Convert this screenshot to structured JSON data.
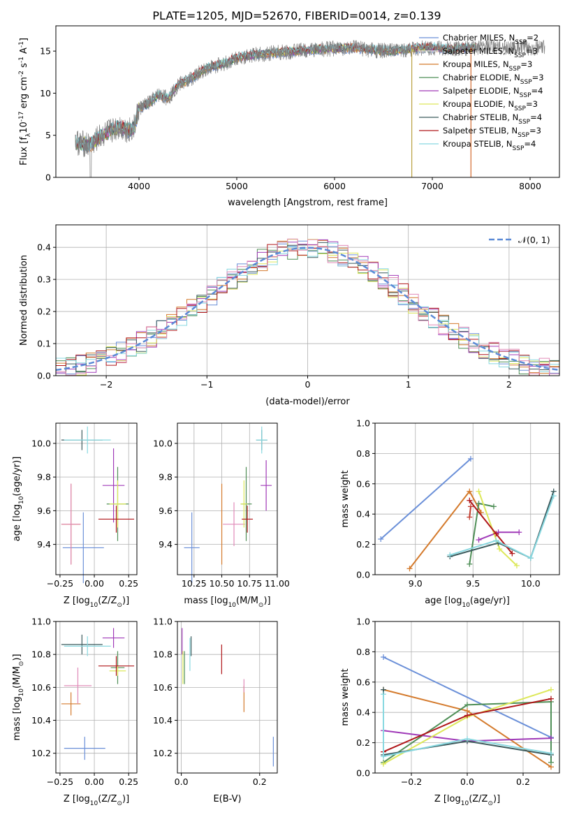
{
  "figure": {
    "title": "PLATE=1205, MJD=52670, FIBERID=0014, z=0.139"
  },
  "legend_entries": [
    {
      "label": "Chabrier MILES, N",
      "sub": "SSP",
      "tail": "=2",
      "color": "#6a8fd8"
    },
    {
      "label": "Salpeter MILES, N",
      "sub": "SSP",
      "tail": "=3",
      "color": "#e8e8e8"
    },
    {
      "label": "Kroupa MILES, N",
      "sub": "SSP",
      "tail": "=3",
      "color": "#d47a2c"
    },
    {
      "label": "Chabrier ELODIE, N",
      "sub": "SSP",
      "tail": "=3",
      "color": "#4f8f57"
    },
    {
      "label": "Salpeter ELODIE, N",
      "sub": "SSP",
      "tail": "=4",
      "color": "#a03ab8"
    },
    {
      "label": "Kroupa ELODIE, N",
      "sub": "SSP",
      "tail": "=3",
      "color": "#dde85a"
    },
    {
      "label": "Chabrier STELIB, N",
      "sub": "SSP",
      "tail": "=4",
      "color": "#3b5a5c"
    },
    {
      "label": "Salpeter STELIB, N",
      "sub": "SSP",
      "tail": "=3",
      "color": "#b0171a"
    },
    {
      "label": "Kroupa STELIB, N",
      "sub": "SSP",
      "tail": "=4",
      "color": "#88d8e0"
    }
  ],
  "chart_data": [
    {
      "id": "spectrum",
      "type": "line",
      "xlabel": "wavelength [Angstrom, rest frame]",
      "ylabel": "Flux [f",
      "ylabel_sub": "λ",
      "ylabel_mid": "10",
      "ylabel_sup": "-17",
      "ylabel_tail": " erg cm",
      "ylabel_sup2": "-2",
      "ylabel_tail2": " s",
      "ylabel_sup3": "-1",
      "ylabel_tail3": " A",
      "ylabel_sup4": "-1",
      "ylabel_end": "]",
      "xlim": [
        3150,
        8300
      ],
      "ylim": [
        0,
        18
      ],
      "xticks": [
        "4000",
        "5000",
        "6000",
        "7000",
        "8000"
      ],
      "xtick_values": [
        4000,
        5000,
        6000,
        7000,
        8000
      ],
      "yticks": [
        "0",
        "5",
        "10",
        "15"
      ],
      "ytick_values": [
        0,
        5,
        10,
        15
      ],
      "continuum_x": [
        3350,
        3500,
        3600,
        3700,
        3800,
        3900,
        3950,
        4000,
        4100,
        4200,
        4300,
        4400,
        4500,
        4700,
        4900,
        5000,
        5200,
        5400,
        5600,
        5800,
        6000,
        6200,
        6400,
        6600,
        6800,
        7000,
        7200,
        7400
      ],
      "continuum_y": [
        4.2,
        3.8,
        4.8,
        5.5,
        6.0,
        5.6,
        5.9,
        8.2,
        8.8,
        9.8,
        9.4,
        11.0,
        11.5,
        13.0,
        13.6,
        14.2,
        14.6,
        14.8,
        15.0,
        15.2,
        15.3,
        15.4,
        15.1,
        15.0,
        15.3,
        15.4,
        15.2,
        15.4
      ],
      "observed_color": "#808080"
    },
    {
      "id": "residuals",
      "type": "histogram",
      "xlabel": "(data-model)/error",
      "ylabel": "Normed distribution",
      "xlim": [
        -2.5,
        2.5
      ],
      "ylim": [
        0,
        0.47
      ],
      "xticks": [
        "−2",
        "−1",
        "0",
        "1",
        "2"
      ],
      "xtick_values": [
        -2,
        -1,
        0,
        1,
        2
      ],
      "yticks": [
        "0.0",
        "0.1",
        "0.2",
        "0.3",
        "0.4"
      ],
      "ytick_values": [
        0,
        0.1,
        0.2,
        0.3,
        0.4
      ],
      "grid": true,
      "legend_label": "𝒩(0, 1)",
      "normal_color": "#5b8ad6",
      "bin_width": 0.1
    },
    {
      "id": "age_vs_Z",
      "type": "errorbar",
      "xlabel": "Z [log",
      "xlabel_sub": "10",
      "xlabel_tail": "(Z/Z",
      "xlabel_sub2": "⊙",
      "xlabel_end": ")]",
      "ylabel": "age  [log",
      "ylabel_sub": "10",
      "ylabel_tail": "(age/yr)]",
      "xlim": [
        -0.28,
        0.31
      ],
      "ylim": [
        9.22,
        10.12
      ],
      "xticks": [
        "−0.25",
        "0.00",
        "0.25"
      ],
      "xtick_values": [
        -0.25,
        0,
        0.25
      ],
      "yticks": [
        "9.4",
        "9.6",
        "9.8",
        "10.0"
      ],
      "ytick_values": [
        9.4,
        9.6,
        9.8,
        10.0
      ],
      "grid": true,
      "points": [
        {
          "x": -0.08,
          "xerr": 0.15,
          "y": 9.38,
          "yerr": 0.21,
          "color": "#6a8fd8"
        },
        {
          "x": -0.17,
          "xerr": 0.07,
          "y": 9.52,
          "yerr": 0.24,
          "color": "#d47a2c"
        },
        {
          "x": -0.17,
          "xerr": 0.07,
          "y": 9.52,
          "yerr": 0.24,
          "color": "#e08ab8"
        },
        {
          "x": 0.17,
          "xerr": 0.08,
          "y": 9.64,
          "yerr": 0.22,
          "color": "#4f8f57"
        },
        {
          "x": 0.14,
          "xerr": 0.08,
          "y": 9.75,
          "yerr": 0.22,
          "color": "#a03ab8"
        },
        {
          "x": 0.17,
          "xerr": 0.06,
          "y": 9.64,
          "yerr": 0.14,
          "color": "#dde85a"
        },
        {
          "x": -0.09,
          "xerr": 0.15,
          "y": 10.02,
          "yerr": 0.06,
          "color": "#3b5a5c"
        },
        {
          "x": 0.16,
          "xerr": 0.13,
          "y": 9.55,
          "yerr": 0.08,
          "color": "#b0171a"
        },
        {
          "x": -0.05,
          "xerr": 0.17,
          "y": 10.02,
          "yerr": 0.08,
          "color": "#88d8e0"
        }
      ]
    },
    {
      "id": "age_vs_mass",
      "type": "errorbar",
      "xlabel": "mass [log",
      "xlabel_sub": "10",
      "xlabel_tail": "(M/M",
      "xlabel_sub2": "⊙",
      "xlabel_end": ")]",
      "ylabel": "",
      "xlim": [
        10.1,
        11.0
      ],
      "ylim": [
        9.22,
        10.12
      ],
      "xticks": [
        "10.25",
        "10.50",
        "10.75",
        "11.00"
      ],
      "xtick_values": [
        10.25,
        10.5,
        10.75,
        11.0
      ],
      "yticks": [
        "9.4",
        "9.6",
        "9.8",
        "10.0"
      ],
      "ytick_values": [
        9.4,
        9.6,
        9.8,
        10.0
      ],
      "grid": true,
      "points": [
        {
          "x": 10.23,
          "xerr": 0.07,
          "y": 9.38,
          "yerr": 0.21,
          "color": "#6a8fd8"
        },
        {
          "x": 10.5,
          "xerr": 0.0,
          "y": 9.52,
          "yerr": 0.24,
          "color": "#d47a2c"
        },
        {
          "x": 10.61,
          "xerr": 0.1,
          "y": 9.52,
          "yerr": 0.13,
          "color": "#e08ab8"
        },
        {
          "x": 10.72,
          "xerr": 0.05,
          "y": 9.64,
          "yerr": 0.22,
          "color": "#4f8f57"
        },
        {
          "x": 10.9,
          "xerr": 0.05,
          "y": 9.75,
          "yerr": 0.15,
          "color": "#a03ab8"
        },
        {
          "x": 10.7,
          "xerr": 0.03,
          "y": 9.64,
          "yerr": 0.14,
          "color": "#dde85a"
        },
        {
          "x": 10.86,
          "xerr": 0.05,
          "y": 10.02,
          "yerr": 0.06,
          "color": "#3b5a5c"
        },
        {
          "x": 10.73,
          "xerr": 0.05,
          "y": 9.55,
          "yerr": 0.08,
          "color": "#b0171a"
        },
        {
          "x": 10.86,
          "xerr": 0.05,
          "y": 10.02,
          "yerr": 0.08,
          "color": "#88d8e0"
        }
      ]
    },
    {
      "id": "weight_vs_age",
      "type": "line",
      "xlabel": "age  [log",
      "xlabel_sub": "10",
      "xlabel_tail": "(age/yr)]",
      "ylabel": "mass weight",
      "xlim": [
        8.65,
        10.25
      ],
      "ylim": [
        0,
        1
      ],
      "xticks": [
        "9.0",
        "9.5",
        "10.0"
      ],
      "xtick_values": [
        9.0,
        9.5,
        10.0
      ],
      "yticks": [
        "0.0",
        "0.2",
        "0.4",
        "0.6",
        "0.8",
        "1.0"
      ],
      "ytick_values": [
        0,
        0.2,
        0.4,
        0.6,
        0.8,
        1.0
      ],
      "grid": true,
      "series": [
        {
          "color": "#6a8fd8",
          "x": [
            8.7,
            9.48
          ],
          "y": [
            0.235,
            0.765
          ]
        },
        {
          "color": "#d47a2c",
          "x": [
            8.95,
            9.47,
            9.57
          ],
          "y": [
            0.04,
            0.55,
            0.41
          ]
        },
        {
          "color": "#4f8f57",
          "x": [
            9.47,
            9.55,
            9.68
          ],
          "y": [
            0.07,
            0.47,
            0.45
          ]
        },
        {
          "color": "#a03ab8",
          "x": [
            9.55,
            9.72,
            9.9
          ],
          "y": [
            0.23,
            0.28,
            0.28
          ]
        },
        {
          "color": "#dde85a",
          "x": [
            9.55,
            9.73,
            9.88
          ],
          "y": [
            0.55,
            0.17,
            0.06
          ]
        },
        {
          "color": "#3b5a5c",
          "x": [
            9.3,
            9.72,
            10.0,
            10.2
          ],
          "y": [
            0.12,
            0.21,
            0.11,
            0.55
          ]
        },
        {
          "color": "#b0171a",
          "x": [
            9.47,
            9.7,
            9.84
          ],
          "y": [
            0.49,
            0.27,
            0.14
          ]
        },
        {
          "color": "#88d8e0",
          "x": [
            9.3,
            9.7,
            10.0,
            10.2
          ],
          "y": [
            0.13,
            0.225,
            0.11,
            0.52
          ]
        },
        {
          "color": "#c23a2c",
          "x": [
            9.47,
            9.48
          ],
          "y": [
            0.38,
            0.45
          ]
        }
      ]
    },
    {
      "id": "mass_vs_Z",
      "type": "errorbar",
      "xlabel": "Z [log",
      "xlabel_sub": "10",
      "xlabel_tail": "(Z/Z",
      "xlabel_sub2": "⊙",
      "xlabel_end": ")]",
      "ylabel": "mass [log",
      "ylabel_sub": "10",
      "ylabel_tail": "(M/M",
      "ylabel_sub2": "⊙",
      "ylabel_end": ")]",
      "xlim": [
        -0.28,
        0.31
      ],
      "ylim": [
        10.08,
        11.0
      ],
      "xticks": [
        "−0.25",
        "0.00",
        "0.25"
      ],
      "xtick_values": [
        -0.25,
        0,
        0.25
      ],
      "yticks": [
        "10.2",
        "10.4",
        "10.6",
        "10.8",
        "11.0"
      ],
      "ytick_values": [
        10.2,
        10.4,
        10.6,
        10.8,
        11.0
      ],
      "grid": true,
      "points": [
        {
          "x": -0.07,
          "xerr": 0.15,
          "y": 10.23,
          "yerr": 0.07,
          "color": "#6a8fd8"
        },
        {
          "x": -0.17,
          "xerr": 0.07,
          "y": 10.5,
          "yerr": 0.07,
          "color": "#d47a2c"
        },
        {
          "x": -0.12,
          "xerr": 0.1,
          "y": 10.61,
          "yerr": 0.11,
          "color": "#e08ab8"
        },
        {
          "x": 0.17,
          "xerr": 0.05,
          "y": 10.72,
          "yerr": 0.1,
          "color": "#4f8f57"
        },
        {
          "x": 0.14,
          "xerr": 0.08,
          "y": 10.9,
          "yerr": 0.06,
          "color": "#a03ab8"
        },
        {
          "x": 0.17,
          "xerr": 0.06,
          "y": 10.7,
          "yerr": 0.03,
          "color": "#dde85a"
        },
        {
          "x": -0.09,
          "xerr": 0.15,
          "y": 10.86,
          "yerr": 0.06,
          "color": "#3b5a5c"
        },
        {
          "x": 0.16,
          "xerr": 0.13,
          "y": 10.73,
          "yerr": 0.06,
          "color": "#b0171a"
        },
        {
          "x": -0.05,
          "xerr": 0.17,
          "y": 10.85,
          "yerr": 0.06,
          "color": "#88d8e0"
        }
      ]
    },
    {
      "id": "mass_vs_ebv",
      "type": "errorbar",
      "xlabel": "E(B-V)",
      "ylabel": "",
      "xlim": [
        -0.01,
        0.245
      ],
      "ylim": [
        10.08,
        11.0
      ],
      "xticks": [
        "0.0",
        "0.2"
      ],
      "xtick_values": [
        0,
        0.2
      ],
      "yticks": [
        "10.2",
        "10.4",
        "10.6",
        "10.8",
        "11.0"
      ],
      "ytick_values": [
        10.2,
        10.4,
        10.6,
        10.8,
        11.0
      ],
      "grid": true,
      "points": [
        {
          "x": 0.235,
          "xerr": 0,
          "y": 10.21,
          "yerr": 0.09,
          "color": "#6a8fd8"
        },
        {
          "x": 0.16,
          "xerr": 0,
          "y": 10.53,
          "yerr": 0.08,
          "color": "#d47a2c"
        },
        {
          "x": 0.16,
          "xerr": 0,
          "y": 10.61,
          "yerr": 0.04,
          "color": "#e08ab8"
        },
        {
          "x": 0.008,
          "xerr": 0,
          "y": 10.72,
          "yerr": 0.1,
          "color": "#4f8f57"
        },
        {
          "x": 0.002,
          "xerr": 0,
          "y": 10.88,
          "yerr": 0.08,
          "color": "#a03ab8"
        },
        {
          "x": 0.004,
          "xerr": 0,
          "y": 10.72,
          "yerr": 0.1,
          "color": "#dde85a"
        },
        {
          "x": 0.025,
          "xerr": 0,
          "y": 10.85,
          "yerr": 0.06,
          "color": "#3b5a5c"
        },
        {
          "x": 0.103,
          "xerr": 0,
          "y": 10.77,
          "yerr": 0.09,
          "color": "#b0171a"
        },
        {
          "x": 0.022,
          "xerr": 0,
          "y": 10.8,
          "yerr": 0.1,
          "color": "#88d8e0"
        }
      ]
    },
    {
      "id": "weight_vs_Z",
      "type": "line",
      "xlabel": "Z [log",
      "xlabel_sub": "10",
      "xlabel_tail": "(Z/Z",
      "xlabel_sub2": "⊙",
      "xlabel_end": ")]",
      "ylabel": "mass weight",
      "xlim": [
        -0.33,
        0.33
      ],
      "ylim": [
        0,
        1
      ],
      "xticks": [
        "−0.2",
        "0.0",
        "0.2"
      ],
      "xtick_values": [
        -0.2,
        0,
        0.2
      ],
      "yticks": [
        "0.0",
        "0.2",
        "0.4",
        "0.6",
        "0.8",
        "1.0"
      ],
      "ytick_values": [
        0,
        0.2,
        0.4,
        0.6,
        0.8,
        1.0
      ],
      "grid": true,
      "series": [
        {
          "color": "#6a8fd8",
          "x": [
            -0.3,
            0.3
          ],
          "y": [
            0.765,
            0.235
          ]
        },
        {
          "color": "#d47a2c",
          "x": [
            -0.3,
            0.0,
            0.3
          ],
          "y": [
            0.55,
            0.41,
            0.04
          ]
        },
        {
          "color": "#4f8f57",
          "x": [
            -0.3,
            0.0,
            0.3,
            0.3
          ],
          "y": [
            0.07,
            0.45,
            0.47,
            0.07
          ]
        },
        {
          "color": "#a03ab8",
          "x": [
            -0.3,
            0.0,
            0.3
          ],
          "y": [
            0.28,
            0.21,
            0.23
          ]
        },
        {
          "color": "#dde85a",
          "x": [
            -0.3,
            0.0,
            0.3
          ],
          "y": [
            0.06,
            0.37,
            0.55
          ]
        },
        {
          "color": "#3b5a5c",
          "x": [
            -0.3,
            -0.3,
            0.0,
            0.3
          ],
          "y": [
            0.55,
            0.12,
            0.21,
            0.12
          ]
        },
        {
          "color": "#b0171a",
          "x": [
            -0.3,
            0.0,
            0.3
          ],
          "y": [
            0.14,
            0.38,
            0.49
          ]
        },
        {
          "color": "#88d8e0",
          "x": [
            -0.3,
            -0.3,
            0.0,
            0.3
          ],
          "y": [
            0.52,
            0.11,
            0.225,
            0.13
          ]
        }
      ]
    }
  ]
}
